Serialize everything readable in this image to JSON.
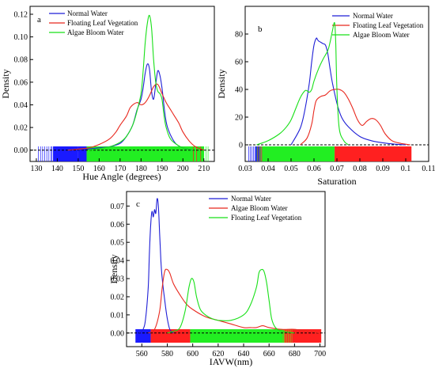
{
  "chart_data": [
    {
      "id": "a",
      "type": "line",
      "panel_label": "a",
      "xlabel": "Hue Angle (degrees)",
      "ylabel": "Density",
      "xlim": [
        127,
        215
      ],
      "ylim": [
        -0.01,
        0.127
      ],
      "xticks": [
        130,
        140,
        150,
        160,
        170,
        180,
        190,
        200,
        210
      ],
      "yticks": [
        0.0,
        0.02,
        0.04,
        0.06,
        0.08,
        0.1,
        0.12
      ],
      "ytick_labels": [
        "0.00",
        "0.02",
        "0.04",
        "0.06",
        "0.08",
        "0.10",
        "0.12"
      ],
      "baseline": 0,
      "legend": {
        "position": "top-left",
        "entries": [
          "Normal Water",
          "Floating Leaf Vegetation",
          "Algae Bloom Water"
        ]
      },
      "series": [
        {
          "name": "Normal Water",
          "color": "#1f1fd6",
          "x": [
            150,
            160,
            165,
            170,
            173,
            176,
            178,
            180,
            181,
            182,
            183,
            184,
            185,
            186,
            187,
            188,
            189,
            190,
            191,
            192,
            193,
            195,
            197,
            200,
            205
          ],
          "y": [
            0,
            0.002,
            0.003,
            0.006,
            0.012,
            0.022,
            0.035,
            0.045,
            0.055,
            0.068,
            0.076,
            0.072,
            0.052,
            0.045,
            0.058,
            0.07,
            0.066,
            0.055,
            0.038,
            0.025,
            0.018,
            0.01,
            0.005,
            0.002,
            0
          ]
        },
        {
          "name": "Floating Leaf Vegetation",
          "color": "#e8281e",
          "x": [
            145,
            155,
            160,
            165,
            168,
            170,
            173,
            175,
            178,
            180,
            182,
            184,
            186,
            188,
            190,
            192,
            194,
            196,
            198,
            200,
            203,
            206,
            210
          ],
          "y": [
            0,
            0.002,
            0.005,
            0.01,
            0.016,
            0.022,
            0.03,
            0.038,
            0.042,
            0.04,
            0.042,
            0.048,
            0.056,
            0.058,
            0.05,
            0.042,
            0.036,
            0.03,
            0.024,
            0.016,
            0.008,
            0.003,
            0
          ]
        },
        {
          "name": "Algae Bloom Water",
          "color": "#18e018",
          "x": [
            155,
            165,
            170,
            173,
            176,
            178,
            180,
            181,
            182,
            183,
            184,
            185,
            186,
            187,
            188,
            189,
            190,
            191,
            192,
            194,
            197,
            200,
            205
          ],
          "y": [
            0,
            0.003,
            0.007,
            0.012,
            0.022,
            0.034,
            0.05,
            0.07,
            0.095,
            0.112,
            0.119,
            0.108,
            0.08,
            0.06,
            0.052,
            0.05,
            0.045,
            0.03,
            0.02,
            0.01,
            0.005,
            0.002,
            0
          ]
        }
      ],
      "rug": [
        {
          "color": "#1a1aff",
          "from": 138,
          "to": 150
        },
        {
          "color": "#1a1aff",
          "from": 150,
          "to": 154
        },
        {
          "color": "#22ee22",
          "from": 154,
          "to": 206
        },
        {
          "color": "#22ee22",
          "from": 206,
          "to": 210
        }
      ],
      "rug_sparse": [
        {
          "color": "#1a1aff",
          "values": [
            131,
            132,
            133,
            134,
            135,
            136,
            137,
            137.5,
            138.2,
            139,
            146,
            151,
            152,
            153
          ]
        },
        {
          "color": "#22ee22",
          "values": [
            207,
            208,
            209,
            210,
            211,
            212
          ]
        },
        {
          "color": "#ff2020",
          "values": [
            205,
            206.5,
            208.5
          ]
        }
      ]
    },
    {
      "id": "b",
      "type": "line",
      "panel_label": "b",
      "xlabel": "Saturation",
      "ylabel": "Density",
      "xlim": [
        0.03,
        0.11
      ],
      "ylim": [
        -12,
        100
      ],
      "xticks": [
        0.03,
        0.04,
        0.05,
        0.06,
        0.07,
        0.08,
        0.09,
        0.1,
        0.11
      ],
      "yticks": [
        0,
        20,
        40,
        60,
        80
      ],
      "ytick_labels": [
        "0",
        "20",
        "40",
        "60",
        "80"
      ],
      "baseline": 0,
      "legend": {
        "position": "top-right",
        "entries": [
          "Normal Water",
          "Floating Leaf Vegetation",
          "Algae Bloom Water"
        ]
      },
      "series": [
        {
          "name": "Normal Water",
          "color": "#1f1fd6",
          "x": [
            0.05,
            0.054,
            0.056,
            0.058,
            0.059,
            0.06,
            0.061,
            0.0615,
            0.062,
            0.063,
            0.064,
            0.065,
            0.066,
            0.067,
            0.068,
            0.07,
            0.072,
            0.075,
            0.08,
            0.085,
            0.09,
            0.095,
            0.1
          ],
          "y": [
            0,
            12,
            25,
            45,
            60,
            72,
            77,
            76,
            75,
            74,
            73,
            72,
            66,
            55,
            45,
            30,
            20,
            13,
            6,
            3,
            1.5,
            0.5,
            0
          ]
        },
        {
          "name": "Floating Leaf Vegetation",
          "color": "#e8281e",
          "x": [
            0.054,
            0.057,
            0.059,
            0.06,
            0.061,
            0.063,
            0.065,
            0.067,
            0.069,
            0.071,
            0.073,
            0.075,
            0.077,
            0.079,
            0.081,
            0.083,
            0.085,
            0.087,
            0.089,
            0.091,
            0.094,
            0.098,
            0.102
          ],
          "y": [
            0,
            5,
            15,
            25,
            32,
            35,
            36,
            39,
            40,
            40,
            38,
            33,
            26,
            18,
            14,
            17,
            19,
            18,
            14,
            8,
            3,
            1,
            0
          ]
        },
        {
          "name": "Algae Bloom Water",
          "color": "#18e018",
          "x": [
            0.035,
            0.04,
            0.045,
            0.048,
            0.05,
            0.052,
            0.054,
            0.056,
            0.057,
            0.058,
            0.059,
            0.06,
            0.062,
            0.064,
            0.066,
            0.067,
            0.068,
            0.069,
            0.0695,
            0.07,
            0.071,
            0.073,
            0.075
          ],
          "y": [
            0,
            3,
            8,
            13,
            18,
            26,
            34,
            39,
            39,
            38,
            40,
            46,
            55,
            62,
            68,
            74,
            82,
            88,
            72,
            40,
            12,
            3,
            0
          ]
        }
      ],
      "rug": [
        {
          "color": "#1a1aff",
          "from": 0.0345,
          "to": 0.037
        },
        {
          "color": "#22ee22",
          "from": 0.037,
          "to": 0.069
        },
        {
          "color": "#ff2020",
          "from": 0.069,
          "to": 0.1025
        }
      ],
      "rug_sparse": [
        {
          "color": "#1a1aff",
          "values": [
            0.0315,
            0.0322,
            0.0329,
            0.0336,
            0.0342,
            0.0355,
            0.036
          ]
        },
        {
          "color": "#22ee22",
          "values": [
            0.0352,
            0.0362,
            0.0368
          ]
        },
        {
          "color": "#ff2020",
          "values": [
            0.0355,
            0.0365,
            0.0372
          ]
        }
      ]
    },
    {
      "id": "c",
      "type": "line",
      "panel_label": "c",
      "xlabel": "IAVW(nm)",
      "ylabel": "Density",
      "xlim": [
        548,
        704
      ],
      "ylim": [
        -0.0075,
        0.078
      ],
      "xticks": [
        560,
        580,
        600,
        620,
        640,
        660,
        680,
        700
      ],
      "yticks": [
        0.0,
        0.01,
        0.02,
        0.03,
        0.04,
        0.05,
        0.06,
        0.07
      ],
      "ytick_labels": [
        "0.00",
        "0.01",
        "0.02",
        "0.03",
        "0.04",
        "0.05",
        "0.06",
        "0.07"
      ],
      "baseline": 0,
      "legend": {
        "position": "top-right",
        "entries": [
          "Normal Water",
          "Algae Bloom Water",
          "Floating Leaf Vegetation"
        ]
      },
      "series": [
        {
          "name": "Normal Water",
          "color": "#1f1fd6",
          "x": [
            558,
            561,
            563,
            565,
            566,
            567,
            568,
            569,
            570,
            571,
            572,
            573,
            574,
            575,
            576,
            578,
            580,
            582,
            585
          ],
          "y": [
            0,
            0.002,
            0.008,
            0.025,
            0.045,
            0.06,
            0.067,
            0.064,
            0.068,
            0.066,
            0.074,
            0.07,
            0.055,
            0.04,
            0.03,
            0.018,
            0.008,
            0.002,
            0
          ]
        },
        {
          "name": "Algae Bloom Water",
          "color": "#e8281e",
          "x": [
            565,
            570,
            574,
            576,
            578,
            580,
            582,
            585,
            590,
            595,
            600,
            610,
            620,
            630,
            640,
            645,
            650,
            655,
            660,
            670,
            680,
            690,
            700
          ],
          "y": [
            0,
            0.002,
            0.012,
            0.025,
            0.034,
            0.035,
            0.033,
            0.027,
            0.021,
            0.016,
            0.013,
            0.009,
            0.007,
            0.005,
            0.003,
            0.003,
            0.003,
            0.004,
            0.003,
            0.002,
            0.002,
            0.001,
            0
          ]
        },
        {
          "name": "Floating Leaf Vegetation",
          "color": "#18e018",
          "x": [
            580,
            585,
            590,
            594,
            597,
            599,
            601,
            603,
            606,
            610,
            615,
            620,
            630,
            640,
            645,
            650,
            652,
            654,
            656,
            658,
            660,
            662,
            665,
            670,
            680
          ],
          "y": [
            0,
            0.001,
            0.003,
            0.012,
            0.025,
            0.03,
            0.028,
            0.02,
            0.013,
            0.01,
            0.008,
            0.007,
            0.007,
            0.01,
            0.015,
            0.025,
            0.033,
            0.035,
            0.034,
            0.028,
            0.018,
            0.008,
            0.003,
            0.001,
            0
          ]
        }
      ],
      "rug": [
        {
          "color": "#1a1aff",
          "from": 555,
          "to": 567
        },
        {
          "color": "#ff2020",
          "from": 567,
          "to": 598
        },
        {
          "color": "#22ee22",
          "from": 598,
          "to": 672
        },
        {
          "color": "#ff2020",
          "from": 672,
          "to": 701
        }
      ],
      "rug_sparse": [
        {
          "color": "#b09a20",
          "values": [
            671,
            672,
            673,
            674,
            675,
            676,
            677,
            678
          ]
        }
      ]
    }
  ]
}
